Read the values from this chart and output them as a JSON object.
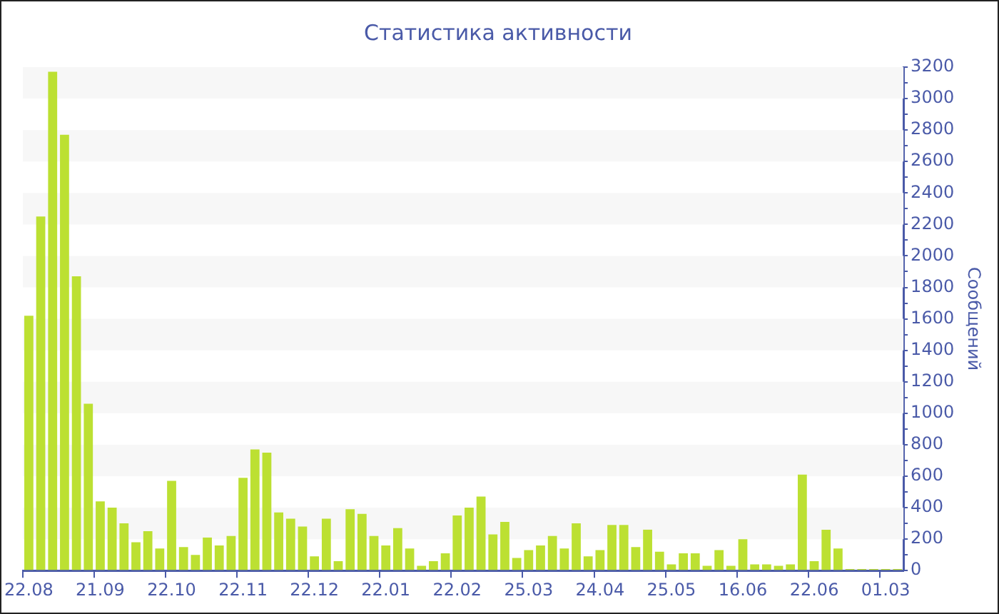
{
  "chart_data": {
    "type": "bar",
    "title": "Статистика активности",
    "ylabel": "Сообщений",
    "categories": [
      "22.08",
      null,
      null,
      null,
      null,
      null,
      "21.09",
      null,
      null,
      null,
      null,
      null,
      "22.10",
      null,
      null,
      null,
      null,
      null,
      "22.11",
      null,
      null,
      null,
      null,
      null,
      "22.12",
      null,
      null,
      null,
      null,
      null,
      "22.01",
      null,
      null,
      null,
      null,
      null,
      "22.02",
      null,
      null,
      null,
      null,
      null,
      "25.03",
      null,
      null,
      null,
      null,
      null,
      "24.04",
      null,
      null,
      null,
      null,
      null,
      "25.05",
      null,
      null,
      null,
      null,
      null,
      "16.06",
      null,
      null,
      null,
      null,
      null,
      "22.06",
      null,
      null,
      null,
      null,
      null,
      "01.03",
      null
    ],
    "values": [
      1620,
      2250,
      3170,
      2770,
      1870,
      1060,
      440,
      400,
      300,
      180,
      250,
      140,
      570,
      150,
      100,
      210,
      160,
      220,
      590,
      770,
      750,
      370,
      330,
      280,
      90,
      330,
      60,
      390,
      360,
      220,
      160,
      270,
      140,
      30,
      60,
      110,
      350,
      400,
      470,
      230,
      310,
      80,
      130,
      160,
      220,
      140,
      300,
      90,
      130,
      290,
      290,
      150,
      260,
      120,
      40,
      110,
      110,
      30,
      130,
      30,
      200,
      40,
      40,
      30,
      40,
      610,
      60,
      260,
      140,
      10,
      10,
      10,
      10,
      10
    ],
    "color": "#bce032",
    "ylim": [
      0,
      3200
    ],
    "yticks": [
      0,
      {
        "value": 100,
        "label": null
      },
      200,
      {
        "value": 300,
        "label": null
      },
      400,
      {
        "value": 500,
        "label": null
      },
      600,
      {
        "value": 700,
        "label": null
      },
      800,
      {
        "value": 900,
        "label": null
      },
      1000,
      {
        "value": 1100,
        "label": null
      },
      1200,
      {
        "value": 1300,
        "label": null
      },
      1400,
      {
        "value": 1500,
        "label": null
      },
      1600,
      {
        "value": 1700,
        "label": null
      },
      1800,
      {
        "value": 1900,
        "label": null
      },
      2000,
      {
        "value": 2100,
        "label": null
      },
      2200,
      {
        "value": 2300,
        "label": null
      },
      2400,
      {
        "value": 2500,
        "label": null
      },
      2600,
      {
        "value": 2700,
        "label": null
      },
      2800,
      {
        "value": 2900,
        "label": null
      },
      3000,
      {
        "value": 3100,
        "label": null
      },
      3200
    ]
  }
}
